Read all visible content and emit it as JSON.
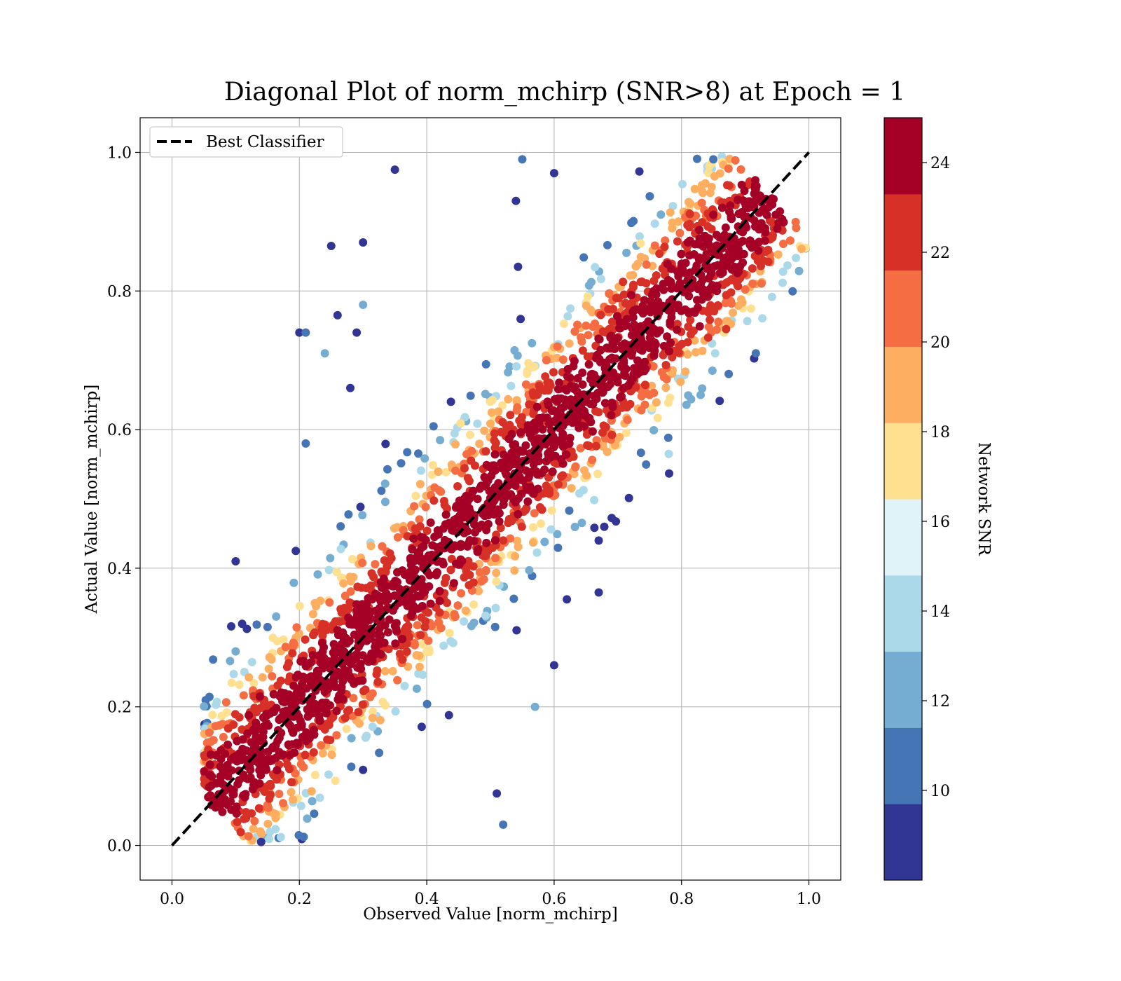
{
  "chart_data": {
    "type": "scatter",
    "title": "Diagonal Plot of norm_mchirp (SNR>8) at Epoch = 1",
    "xlabel": "Observed Value [norm_mchirp]",
    "ylabel": "Actual Value [norm_mchirp]",
    "xlim": [
      -0.05,
      1.05
    ],
    "ylim": [
      -0.05,
      1.05
    ],
    "x_ticks": [
      "0.0",
      "0.2",
      "0.4",
      "0.6",
      "0.8",
      "1.0"
    ],
    "y_ticks": [
      "0.0",
      "0.2",
      "0.4",
      "0.6",
      "0.8",
      "1.0"
    ],
    "grid": true,
    "legend": {
      "placement": "upper-left",
      "entries": [
        {
          "label": "Best Classifier",
          "style": "dashed",
          "color": "#000000"
        }
      ]
    },
    "reference_line": {
      "x": [
        0.0,
        1.0
      ],
      "y": [
        0.0,
        1.0
      ]
    },
    "colorbar": {
      "label": "Network SNR",
      "range": [
        8,
        25
      ],
      "ticks": [
        "10",
        "12",
        "14",
        "16",
        "18",
        "20",
        "22",
        "24"
      ],
      "colors": [
        "#313695",
        "#4575b4",
        "#74add1",
        "#abd9e9",
        "#e0f3f8",
        "#fee090",
        "#fdae61",
        "#f46d43",
        "#d73027",
        "#a50026"
      ]
    },
    "series": [
      {
        "color_by": "Network SNR",
        "points": [
          {
            "x": 0.35,
            "y": 0.975,
            "snr": 9
          },
          {
            "x": 0.25,
            "y": 0.865,
            "snr": 9
          },
          {
            "x": 0.3,
            "y": 0.87,
            "snr": 9
          },
          {
            "x": 0.2,
            "y": 0.74,
            "snr": 9
          },
          {
            "x": 0.21,
            "y": 0.74,
            "snr": 11
          },
          {
            "x": 0.24,
            "y": 0.71,
            "snr": 12
          },
          {
            "x": 0.26,
            "y": 0.765,
            "snr": 9
          },
          {
            "x": 0.3,
            "y": 0.78,
            "snr": 13
          },
          {
            "x": 0.29,
            "y": 0.74,
            "snr": 9
          },
          {
            "x": 0.28,
            "y": 0.66,
            "snr": 9
          },
          {
            "x": 0.21,
            "y": 0.58,
            "snr": 11
          },
          {
            "x": 0.1,
            "y": 0.41,
            "snr": 9
          },
          {
            "x": 0.1,
            "y": 0.28,
            "snr": 13
          },
          {
            "x": 0.14,
            "y": 0.005,
            "snr": 9
          },
          {
            "x": 0.52,
            "y": 0.03,
            "snr": 11
          },
          {
            "x": 0.51,
            "y": 0.075,
            "snr": 9
          },
          {
            "x": 0.57,
            "y": 0.2,
            "snr": 12
          },
          {
            "x": 0.6,
            "y": 0.26,
            "snr": 9
          },
          {
            "x": 0.62,
            "y": 0.355,
            "snr": 9
          },
          {
            "x": 0.67,
            "y": 0.365,
            "snr": 9
          },
          {
            "x": 0.67,
            "y": 0.44,
            "snr": 9
          },
          {
            "x": 0.78,
            "y": 0.565,
            "snr": 14
          },
          {
            "x": 0.83,
            "y": 0.65,
            "snr": 12
          },
          {
            "x": 0.87,
            "y": 0.745,
            "snr": 22
          },
          {
            "x": 0.55,
            "y": 0.99,
            "snr": 11
          },
          {
            "x": 0.6,
            "y": 0.97,
            "snr": 9
          },
          {
            "x": 0.54,
            "y": 0.93,
            "snr": 9
          },
          {
            "x": 0.85,
            "y": 0.99,
            "snr": 11
          }
        ]
      }
    ]
  }
}
